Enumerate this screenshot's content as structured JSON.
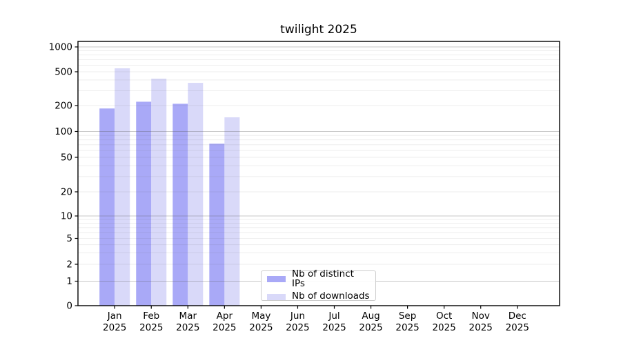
{
  "chart_data": {
    "type": "bar",
    "title": "twilight 2025",
    "categories": [
      "Jan 2025",
      "Feb 2025",
      "Mar 2025",
      "Apr 2025",
      "May 2025",
      "Jun 2025",
      "Jul 2025",
      "Aug 2025",
      "Sep 2025",
      "Oct 2025",
      "Nov 2025",
      "Dec 2025"
    ],
    "series": [
      {
        "name": "Nb of distinct IPs",
        "color": "#a9a9f7",
        "values": [
          185,
          222,
          210,
          72,
          null,
          null,
          null,
          null,
          null,
          null,
          null,
          null
        ]
      },
      {
        "name": "Nb of downloads",
        "color": "#d9d9f9",
        "values": [
          550,
          415,
          370,
          146,
          null,
          null,
          null,
          null,
          null,
          null,
          null,
          null
        ]
      }
    ],
    "y_axis": {
      "scale": "symlog",
      "ticks": [
        0,
        1,
        2,
        5,
        10,
        20,
        50,
        100,
        200,
        500,
        1000
      ],
      "ylim": [
        0,
        1000
      ]
    },
    "grid": "horizontal",
    "legend_position": "lower center-left"
  },
  "colors": {
    "bar_dark": "#a9a9f7",
    "bar_light": "#d9d9f9",
    "major_grid": "#c3c3c3",
    "minor_grid": "#eeeeee",
    "axis": "#000000"
  }
}
